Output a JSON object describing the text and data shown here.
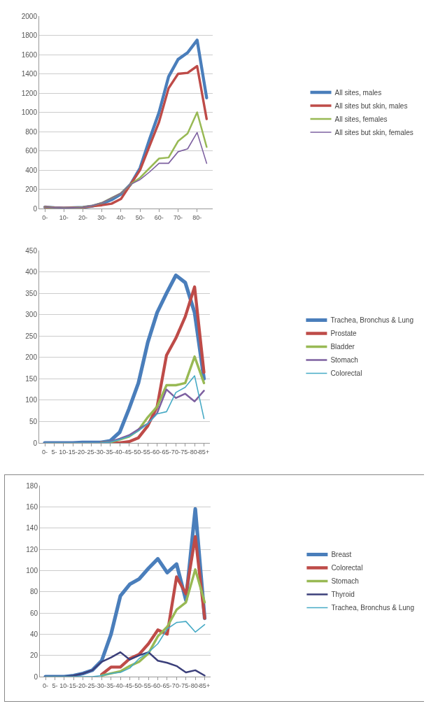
{
  "chart_data": [
    {
      "type": "line",
      "categories": [
        "0-",
        null,
        "10-",
        null,
        "20-",
        null,
        "30-",
        null,
        "40-",
        null,
        "50-",
        null,
        "60-",
        null,
        "70-",
        null,
        "80-",
        null
      ],
      "ylim": [
        0,
        2000
      ],
      "yticks": [
        0,
        200,
        400,
        600,
        800,
        1000,
        1200,
        1400,
        1600,
        1800,
        2000
      ],
      "grid": "y",
      "legend": "right",
      "marker": "none",
      "line_style": "solid",
      "series": [
        {
          "name": "All sites, males",
          "color": "#4a7ebb",
          "values": [
            15,
            8,
            5,
            8,
            12,
            25,
            50,
            90,
            150,
            250,
            420,
            720,
            1000,
            1370,
            1550,
            1620,
            1750,
            1150
          ]
        },
        {
          "name": "All sites but skin, males",
          "color": "#be4b48",
          "values": [
            15,
            8,
            5,
            8,
            12,
            25,
            35,
            50,
            100,
            250,
            400,
            650,
            900,
            1250,
            1400,
            1410,
            1480,
            930
          ]
        },
        {
          "name": "All sites, females",
          "color": "#98b954",
          "values": [
            15,
            8,
            5,
            8,
            12,
            30,
            60,
            110,
            160,
            250,
            320,
            420,
            520,
            530,
            700,
            780,
            1000,
            640
          ]
        },
        {
          "name": "All sites but skin, females",
          "color": "#7d60a0",
          "values": [
            15,
            8,
            5,
            8,
            12,
            30,
            60,
            110,
            160,
            250,
            300,
            380,
            470,
            470,
            590,
            620,
            790,
            470
          ]
        }
      ]
    },
    {
      "type": "line",
      "categories": [
        "0-",
        "5-",
        "10-",
        "15-",
        "20-",
        "25-",
        "30-",
        "35-",
        "40-",
        "45-",
        "50-",
        "55-",
        "60-",
        "65-",
        "70-",
        "75-",
        "80-",
        "85+"
      ],
      "ylim": [
        0,
        450
      ],
      "yticks": [
        0,
        50,
        100,
        150,
        200,
        250,
        300,
        350,
        400,
        450
      ],
      "grid": "y",
      "legend": "right",
      "marker": "none",
      "line_style": "solid",
      "series": [
        {
          "name": "Trachea, Bronchus & Lung",
          "color": "#4a7ebb",
          "values": [
            0,
            0,
            0,
            0,
            1,
            1,
            1,
            5,
            25,
            80,
            140,
            235,
            305,
            350,
            392,
            375,
            305,
            150
          ]
        },
        {
          "name": "Prostate",
          "color": "#be4b48",
          "values": [
            null,
            null,
            null,
            null,
            null,
            null,
            0,
            0,
            0,
            3,
            12,
            40,
            85,
            205,
            245,
            295,
            365,
            165
          ]
        },
        {
          "name": "Bladder",
          "color": "#98b954",
          "values": [
            null,
            null,
            null,
            null,
            null,
            null,
            0,
            2,
            8,
            15,
            30,
            60,
            85,
            135,
            135,
            140,
            202,
            140
          ]
        },
        {
          "name": "Stomach",
          "color": "#7d60a0",
          "values": [
            0,
            0,
            0,
            0,
            0,
            0,
            0,
            3,
            10,
            18,
            32,
            45,
            70,
            125,
            105,
            115,
            97,
            122
          ]
        },
        {
          "name": "Colorectal",
          "color": "#46aac5",
          "values": [
            0,
            0,
            0,
            0,
            0,
            0,
            0,
            2,
            8,
            15,
            28,
            45,
            68,
            73,
            118,
            130,
            157,
            57
          ]
        }
      ]
    },
    {
      "type": "line",
      "categories": [
        "0-",
        "5-",
        "10-",
        "15-",
        "20-",
        "25-",
        "30-",
        "35-",
        "40-",
        "45-",
        "50-",
        "55-",
        "60-",
        "65-",
        "70-",
        "75-",
        "80-",
        "85+"
      ],
      "ylim": [
        0,
        180
      ],
      "yticks": [
        0,
        20,
        40,
        60,
        80,
        100,
        120,
        140,
        160,
        180
      ],
      "grid": "y",
      "legend": "right",
      "marker": "none",
      "line_style": "solid",
      "series": [
        {
          "name": "Breast",
          "color": "#4a7ebb",
          "values": [
            0,
            0,
            0,
            1,
            3,
            6,
            15,
            40,
            76,
            87,
            92,
            102,
            111,
            98,
            106,
            72,
            158,
            55
          ]
        },
        {
          "name": "Colorectal",
          "color": "#be4b48",
          "values": [
            null,
            null,
            null,
            null,
            null,
            null,
            2,
            9,
            9,
            17,
            21,
            31,
            44,
            40,
            94,
            78,
            132,
            55
          ]
        },
        {
          "name": "Stomach",
          "color": "#98b954",
          "values": [
            null,
            null,
            null,
            null,
            null,
            null,
            1,
            3,
            5,
            10,
            14,
            22,
            38,
            47,
            63,
            70,
            101,
            70
          ]
        },
        {
          "name": "Thyroid",
          "color": "#3b3f7a",
          "values": [
            0,
            0,
            0,
            1,
            3,
            6,
            14,
            18,
            23,
            16,
            20,
            23,
            15,
            13,
            10,
            4,
            6,
            1
          ]
        },
        {
          "name": "Trachea, Bronchus & Lung",
          "color": "#46aac5",
          "values": [
            0,
            0,
            0,
            0,
            0,
            0,
            1,
            3,
            4,
            8,
            17,
            23,
            31,
            45,
            51,
            52,
            42,
            49
          ]
        }
      ]
    }
  ]
}
